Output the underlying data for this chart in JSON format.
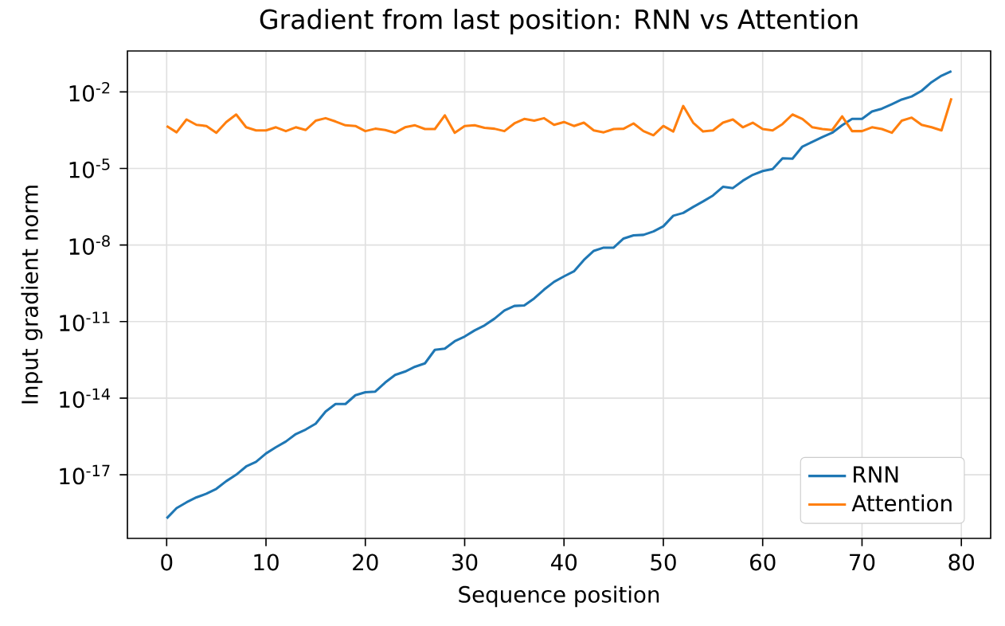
{
  "chart_data": {
    "type": "line",
    "title": "Gradient from last position: RNN vs Attention",
    "xlabel": "Sequence position",
    "ylabel": "Input gradient norm",
    "x": [
      0,
      1,
      2,
      3,
      4,
      5,
      6,
      7,
      8,
      9,
      10,
      11,
      12,
      13,
      14,
      15,
      16,
      17,
      18,
      19,
      20,
      21,
      22,
      23,
      24,
      25,
      26,
      27,
      28,
      29,
      30,
      31,
      32,
      33,
      34,
      35,
      36,
      37,
      38,
      39,
      40,
      41,
      42,
      43,
      44,
      45,
      46,
      47,
      48,
      49,
      50,
      51,
      52,
      53,
      54,
      55,
      56,
      57,
      58,
      59,
      60,
      61,
      62,
      63,
      64,
      65,
      66,
      67,
      68,
      69,
      70,
      71,
      72,
      73,
      74,
      75,
      76,
      77,
      78,
      79
    ],
    "series": [
      {
        "name": "RNN",
        "color": "#1f77b4",
        "values": [
          1.95e-19,
          4.9e-19,
          8.3e-19,
          1.3e-18,
          1.8e-18,
          2.8e-18,
          5.6e-18,
          1e-17,
          2.1e-17,
          3.2e-17,
          6.8e-17,
          1.2e-16,
          2e-16,
          3.9e-16,
          5.9e-16,
          1e-15,
          3e-15,
          5.9e-15,
          5.9e-15,
          1.3e-14,
          1.7e-14,
          1.8e-14,
          4.1e-14,
          8.1e-14,
          1.1e-13,
          1.7e-13,
          2.3e-13,
          7.8e-13,
          8.7e-13,
          1.7e-12,
          2.6e-12,
          4.5e-12,
          7.1e-12,
          1.3e-11,
          2.7e-11,
          4.1e-11,
          4.3e-11,
          8.1e-11,
          1.8e-10,
          3.6e-10,
          5.9e-10,
          9.3e-10,
          2.6e-09,
          5.9e-09,
          7.9e-09,
          7.9e-09,
          1.8e-08,
          2.4e-08,
          2.5e-08,
          3.4e-08,
          5.4e-08,
          1.4e-07,
          1.8e-07,
          3.1e-07,
          5.1e-07,
          8.7e-07,
          1.9e-06,
          1.7e-06,
          3.3e-06,
          5.6e-06,
          7.9e-06,
          9.5e-06,
          2.5e-05,
          2.4e-05,
          7.2e-05,
          0.00011,
          0.00017,
          0.00025,
          0.00049,
          0.00087,
          0.00087,
          0.0017,
          0.0022,
          0.0033,
          0.005,
          0.0066,
          0.011,
          0.024,
          0.043,
          0.065
        ]
      },
      {
        "name": "Attention",
        "color": "#ff7f0e",
        "values": [
          0.00046,
          0.00026,
          0.00083,
          0.00051,
          0.00046,
          0.00025,
          0.00066,
          0.0013,
          0.00041,
          0.00031,
          0.00031,
          0.00041,
          0.00029,
          0.00041,
          0.00032,
          0.00074,
          0.00093,
          0.00069,
          0.00049,
          0.00046,
          0.00029,
          0.00036,
          0.00032,
          0.00025,
          0.00041,
          0.00049,
          0.00035,
          0.00035,
          0.0012,
          0.00025,
          0.00046,
          0.00049,
          0.00039,
          0.00036,
          0.00029,
          0.00058,
          0.00087,
          0.00074,
          0.00093,
          0.00051,
          0.00066,
          0.00046,
          0.00062,
          0.00031,
          0.00026,
          0.00035,
          0.00036,
          0.00058,
          0.00029,
          0.0002,
          0.00046,
          0.00028,
          0.0028,
          0.00062,
          0.00028,
          0.00031,
          0.00062,
          0.00083,
          0.00041,
          0.00062,
          0.00035,
          0.00031,
          0.00055,
          0.0013,
          0.00087,
          0.00041,
          0.00035,
          0.00032,
          0.0011,
          0.00029,
          0.00029,
          0.00041,
          0.00035,
          0.00025,
          0.00074,
          0.00098,
          0.00051,
          0.00041,
          0.00031,
          0.0056
        ]
      }
    ],
    "log": "y",
    "xlim": [
      -3.95,
      82.95
    ],
    "ylim": [
      3.2e-20,
      0.4
    ],
    "xticks": [
      0,
      10,
      20,
      30,
      40,
      50,
      60,
      70,
      80
    ],
    "yticks": [
      {
        "value": 1e-17,
        "label": "10$^{-17}$"
      },
      {
        "value": 1e-14,
        "label": "10$^{-14}$"
      },
      {
        "value": 1e-11,
        "label": "10$^{-11}$"
      },
      {
        "value": 1e-08,
        "label": "10$^{-8}$"
      },
      {
        "value": 1e-05,
        "label": "10$^{-5}$"
      },
      {
        "value": 0.01,
        "label": "10$^{-2}$"
      }
    ],
    "grid": true,
    "legend": "bottom right"
  }
}
